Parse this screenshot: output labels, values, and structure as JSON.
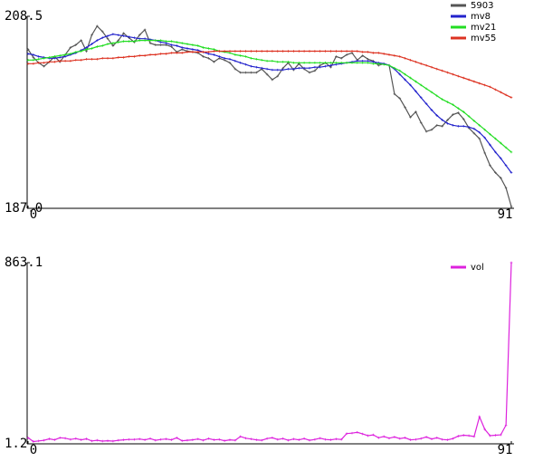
{
  "chart_data": [
    {
      "type": "line",
      "xlim": [
        0,
        91
      ],
      "xticks": [
        0,
        91
      ],
      "ylim": [
        187,
        208.5
      ],
      "yticks": [
        {
          "value": 187,
          "label": "187.0"
        },
        208.5
      ],
      "series": [
        {
          "name": "5903",
          "color": "#555555",
          "values": [
            204.8,
            203.9,
            203.3,
            202.9,
            203.4,
            204.0,
            203.4,
            204.2,
            205.0,
            205.3,
            205.8,
            204.6,
            206.4,
            207.4,
            206.8,
            206.0,
            205.2,
            205.8,
            206.6,
            206.1,
            205.6,
            206.4,
            207.0,
            205.5,
            205.3,
            205.3,
            205.3,
            205.1,
            204.5,
            204.8,
            204.6,
            204.5,
            204.4,
            204.0,
            203.8,
            203.4,
            203.8,
            203.6,
            203.3,
            202.6,
            202.2,
            202.2,
            202.2,
            202.2,
            202.6,
            202.0,
            201.4,
            201.8,
            202.7,
            203.3,
            202.5,
            203.2,
            202.6,
            202.2,
            202.4,
            203.0,
            203.3,
            202.8,
            204.0,
            203.8,
            204.2,
            204.4,
            203.6,
            204.1,
            203.7,
            203.5,
            203.0,
            203.2,
            203.0,
            199.8,
            199.3,
            198.3,
            197.2,
            197.8,
            196.6,
            195.6,
            195.8,
            196.3,
            196.2,
            196.9,
            197.5,
            197.7,
            197.0,
            196.0,
            195.4,
            194.8,
            193.2,
            191.8,
            191.0,
            190.4,
            189.3,
            187.2
          ]
        },
        {
          "name": "mv8",
          "color": "#2222cc",
          "values": [
            204.3,
            204.2,
            204.0,
            203.9,
            203.8,
            203.8,
            203.9,
            204.0,
            204.2,
            204.4,
            204.7,
            205.0,
            205.4,
            205.8,
            206.1,
            206.3,
            206.5,
            206.4,
            206.3,
            206.2,
            206.1,
            206.0,
            206.0,
            205.9,
            205.8,
            205.6,
            205.5,
            205.3,
            205.2,
            205.0,
            204.9,
            204.8,
            204.7,
            204.5,
            204.3,
            204.2,
            204.0,
            203.8,
            203.7,
            203.5,
            203.3,
            203.1,
            202.9,
            202.8,
            202.7,
            202.6,
            202.5,
            202.5,
            202.5,
            202.6,
            202.6,
            202.7,
            202.7,
            202.7,
            202.8,
            202.8,
            202.9,
            203.0,
            203.1,
            203.2,
            203.3,
            203.4,
            203.5,
            203.5,
            203.5,
            203.4,
            203.3,
            203.2,
            203.0,
            202.6,
            202.0,
            201.4,
            200.8,
            200.1,
            199.4,
            198.7,
            198.0,
            197.4,
            196.9,
            196.5,
            196.3,
            196.2,
            196.2,
            196.1,
            195.9,
            195.5,
            194.9,
            194.1,
            193.3,
            192.6,
            191.8,
            191.0
          ]
        },
        {
          "name": "mv21",
          "color": "#22dd22",
          "values": [
            203.6,
            203.6,
            203.7,
            203.8,
            203.9,
            204.0,
            204.1,
            204.2,
            204.3,
            204.5,
            204.6,
            204.8,
            204.9,
            205.1,
            205.2,
            205.4,
            205.5,
            205.6,
            205.7,
            205.7,
            205.7,
            205.8,
            205.8,
            205.8,
            205.8,
            205.8,
            205.7,
            205.7,
            205.6,
            205.5,
            205.4,
            205.3,
            205.2,
            205.0,
            204.9,
            204.8,
            204.6,
            204.5,
            204.4,
            204.2,
            204.1,
            204.0,
            203.8,
            203.7,
            203.6,
            203.5,
            203.5,
            203.4,
            203.4,
            203.4,
            203.3,
            203.3,
            203.3,
            203.3,
            203.3,
            203.3,
            203.3,
            203.3,
            203.3,
            203.3,
            203.3,
            203.3,
            203.3,
            203.3,
            203.3,
            203.2,
            203.2,
            203.1,
            203.0,
            202.7,
            202.4,
            202.0,
            201.6,
            201.2,
            200.8,
            200.4,
            200.0,
            199.6,
            199.2,
            198.9,
            198.6,
            198.2,
            197.8,
            197.3,
            196.8,
            196.3,
            195.8,
            195.3,
            194.8,
            194.3,
            193.8,
            193.3
          ]
        },
        {
          "name": "mv55",
          "color": "#dd3322",
          "values": [
            203.2,
            203.2,
            203.3,
            203.3,
            203.4,
            203.4,
            203.5,
            203.5,
            203.5,
            203.6,
            203.6,
            203.7,
            203.7,
            203.7,
            203.8,
            203.8,
            203.8,
            203.9,
            203.9,
            204.0,
            204.0,
            204.1,
            204.1,
            204.2,
            204.2,
            204.3,
            204.3,
            204.4,
            204.4,
            204.4,
            204.5,
            204.5,
            204.5,
            204.5,
            204.5,
            204.6,
            204.6,
            204.6,
            204.6,
            204.6,
            204.6,
            204.6,
            204.6,
            204.6,
            204.6,
            204.6,
            204.6,
            204.6,
            204.6,
            204.6,
            204.6,
            204.6,
            204.6,
            204.6,
            204.6,
            204.6,
            204.6,
            204.6,
            204.6,
            204.6,
            204.6,
            204.6,
            204.6,
            204.5,
            204.5,
            204.4,
            204.4,
            204.3,
            204.2,
            204.1,
            204.0,
            203.8,
            203.6,
            203.4,
            203.2,
            203.0,
            202.8,
            202.6,
            202.4,
            202.2,
            202.0,
            201.8,
            201.6,
            201.4,
            201.2,
            201.0,
            200.8,
            200.6,
            200.3,
            200.0,
            199.7,
            199.4
          ]
        }
      ]
    },
    {
      "type": "line",
      "xlim": [
        0,
        91
      ],
      "xticks": [
        0,
        91
      ],
      "ylim": [
        1.2,
        863.1
      ],
      "yticks": [
        1.2,
        863.1
      ],
      "series": [
        {
          "name": "vol",
          "color": "#dd22dd",
          "values": [
            30,
            12,
            15,
            18,
            25,
            20,
            30,
            28,
            22,
            26,
            20,
            25,
            15,
            18,
            14,
            16,
            14,
            18,
            20,
            22,
            22,
            24,
            20,
            26,
            18,
            22,
            24,
            20,
            30,
            16,
            18,
            20,
            24,
            18,
            26,
            20,
            22,
            16,
            20,
            18,
            36,
            28,
            24,
            20,
            18,
            26,
            30,
            22,
            26,
            18,
            24,
            20,
            26,
            18,
            22,
            28,
            22,
            20,
            24,
            22,
            50,
            52,
            56,
            48,
            40,
            44,
            30,
            36,
            28,
            34,
            26,
            30,
            20,
            22,
            26,
            34,
            24,
            30,
            22,
            20,
            26,
            38,
            42,
            40,
            36,
            130,
            70,
            40,
            42,
            44,
            90,
            863.1
          ]
        }
      ]
    }
  ]
}
